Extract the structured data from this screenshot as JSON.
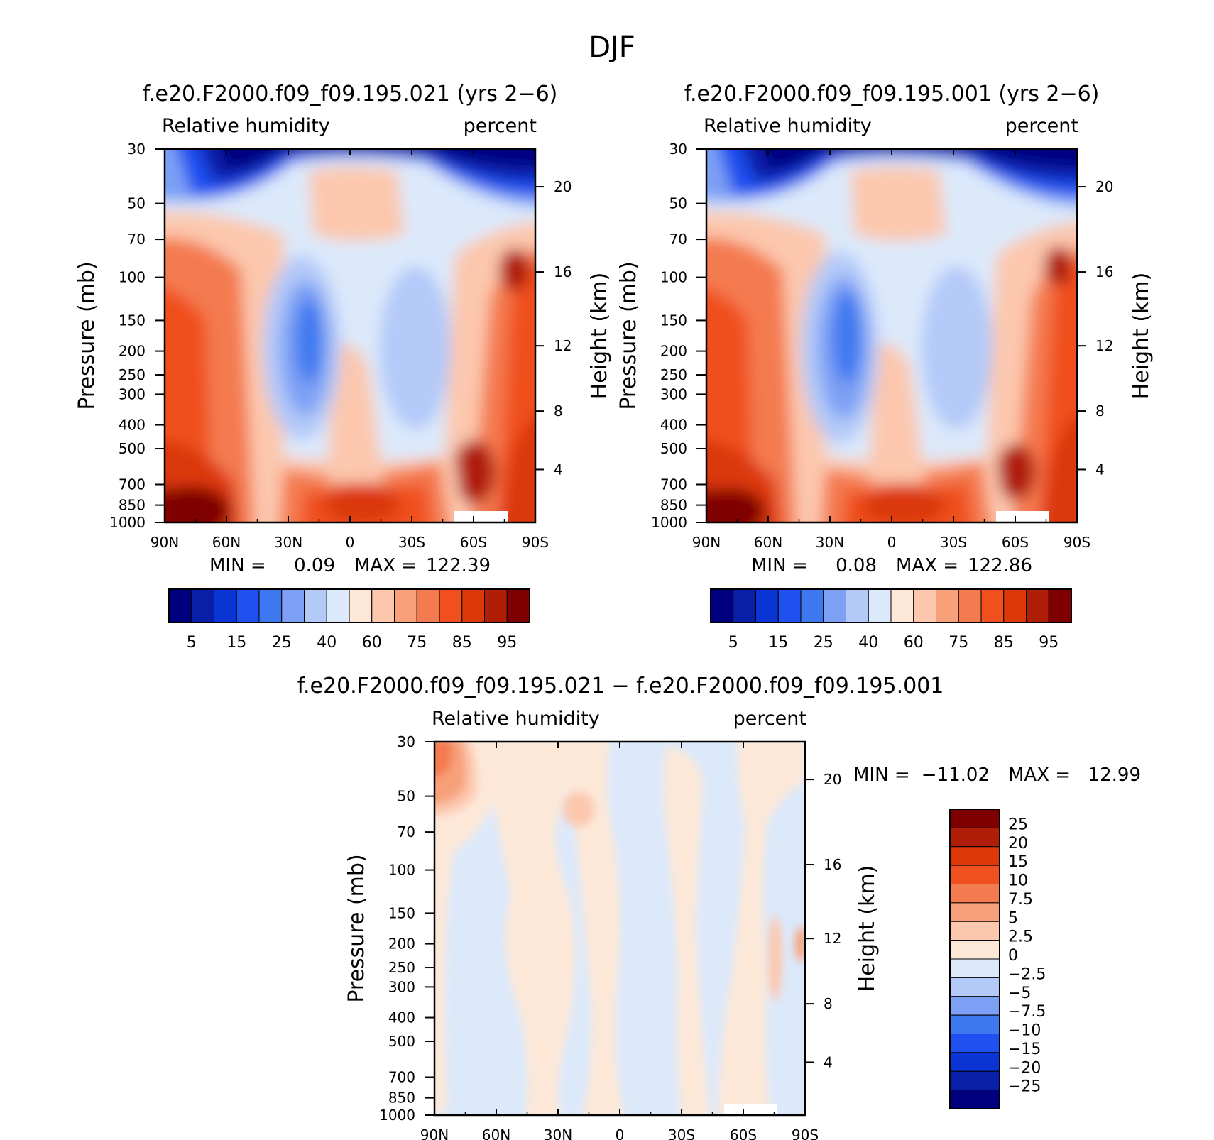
{
  "figure": {
    "title": "DJF"
  },
  "chart_data": [
    {
      "type": "heatmap",
      "title": "f.e20.F2000.f09_f09.195.021 (yrs 2−6)",
      "variable": "Relative humidity",
      "units": "percent",
      "xlabel": "",
      "ylabel": "Pressure (mb)",
      "ylabel_right": "Height (km)",
      "x_ticks": [
        "90N",
        "60N",
        "30N",
        "0",
        "30S",
        "60S",
        "90S"
      ],
      "y_ticks": [
        "30",
        "50",
        "70",
        "100",
        "150",
        "200",
        "250",
        "300",
        "400",
        "500",
        "700",
        "850",
        "1000"
      ],
      "y_right_ticks": [
        "20",
        "16",
        "12",
        "8",
        "4"
      ],
      "y_scale": "log",
      "min_label": "MIN =",
      "min_value": "0.09",
      "max_label": "MAX =",
      "max_value": "122.39",
      "colorbar": {
        "orientation": "horizontal",
        "labels": [
          "5",
          "15",
          "25",
          "40",
          "60",
          "75",
          "85",
          "95"
        ],
        "colors": [
          "#00007f",
          "#0a1fa8",
          "#0a35d4",
          "#1f50f0",
          "#3e78f0",
          "#7da0f4",
          "#b3c9f8",
          "#dce9fb",
          "#fde8d8",
          "#fcc7ad",
          "#f8a07a",
          "#f47a4f",
          "#f0501e",
          "#dc3808",
          "#b01e08",
          "#7f0000"
        ]
      },
      "landmask_note": "white region near surface 55S-85S"
    },
    {
      "type": "heatmap",
      "title": "f.e20.F2000.f09_f09.195.001 (yrs 2−6)",
      "variable": "Relative humidity",
      "units": "percent",
      "xlabel": "",
      "ylabel": "Pressure (mb)",
      "ylabel_right": "Height (km)",
      "x_ticks": [
        "90N",
        "60N",
        "30N",
        "0",
        "30S",
        "60S",
        "90S"
      ],
      "y_ticks": [
        "30",
        "50",
        "70",
        "100",
        "150",
        "200",
        "250",
        "300",
        "400",
        "500",
        "700",
        "850",
        "1000"
      ],
      "y_right_ticks": [
        "20",
        "16",
        "12",
        "8",
        "4"
      ],
      "y_scale": "log",
      "min_label": "MIN =",
      "min_value": "0.08",
      "max_label": "MAX =",
      "max_value": "122.86",
      "colorbar": {
        "orientation": "horizontal",
        "labels": [
          "5",
          "15",
          "25",
          "40",
          "60",
          "75",
          "85",
          "95"
        ],
        "colors": [
          "#00007f",
          "#0a1fa8",
          "#0a35d4",
          "#1f50f0",
          "#3e78f0",
          "#7da0f4",
          "#b3c9f8",
          "#dce9fb",
          "#fde8d8",
          "#fcc7ad",
          "#f8a07a",
          "#f47a4f",
          "#f0501e",
          "#dc3808",
          "#b01e08",
          "#7f0000"
        ]
      }
    },
    {
      "type": "heatmap",
      "title": "f.e20.F2000.f09_f09.195.021 − f.e20.F2000.f09_f09.195.001",
      "variable": "Relative humidity",
      "units": "percent",
      "xlabel": "",
      "ylabel": "Pressure (mb)",
      "ylabel_right": "Height (km)",
      "x_ticks": [
        "90N",
        "60N",
        "30N",
        "0",
        "30S",
        "60S",
        "90S"
      ],
      "y_ticks": [
        "30",
        "50",
        "70",
        "100",
        "150",
        "200",
        "250",
        "300",
        "400",
        "500",
        "700",
        "850",
        "1000"
      ],
      "y_right_ticks": [
        "20",
        "16",
        "12",
        "8",
        "4"
      ],
      "y_scale": "log",
      "min_label": "MIN =",
      "min_value": "−11.02",
      "max_label": "MAX =",
      "max_value": "12.99",
      "colorbar": {
        "orientation": "vertical",
        "labels": [
          "25",
          "20",
          "15",
          "10",
          "7.5",
          "5",
          "2.5",
          "0",
          "−2.5",
          "−5",
          "−7.5",
          "−10",
          "−15",
          "−20",
          "−25"
        ],
        "colors": [
          "#7f0000",
          "#b01e08",
          "#dc3808",
          "#f0501e",
          "#f47a4f",
          "#f8a07a",
          "#fcc7ad",
          "#fde8d8",
          "#dce9fb",
          "#b3c9f8",
          "#7da0f4",
          "#3e78f0",
          "#1f50f0",
          "#0a35d4",
          "#0a1fa8",
          "#00007f"
        ]
      }
    }
  ]
}
